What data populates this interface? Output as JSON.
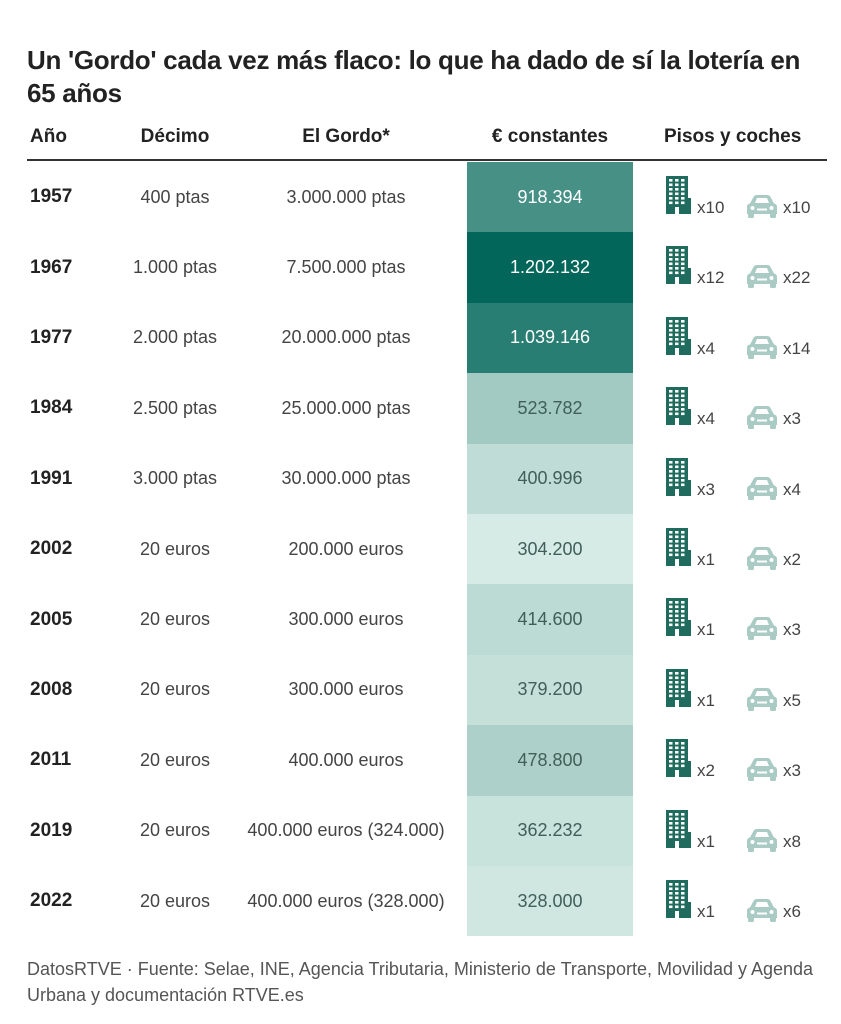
{
  "title": "Un 'Gordo' cada vez más flaco: lo que ha dado de sí la lotería en 65 años",
  "footer": "DatosRTVE · Fuente: Selae, INE, Agencia Tributaria, Ministerio de Transporte, Movilidad y Agenda Urbana y documentación RTVE.es",
  "colors": {
    "building": "#1f6b5e",
    "car": "#a9cbc3",
    "scale_low": "#d6ebe5",
    "scale_high": "#03665a"
  },
  "chart_data": {
    "type": "table",
    "columns": [
      "Año",
      "Décimo",
      "El Gordo*",
      "€ constantes",
      "Pisos y coches"
    ],
    "rows": [
      {
        "year": "1957",
        "decimo": "400 ptas",
        "gordo": "3.000.000 ptas",
        "constantes": "918.394",
        "value": 918394,
        "pisos": "x10",
        "coches": "x10"
      },
      {
        "year": "1967",
        "decimo": "1.000 ptas",
        "gordo": "7.500.000 ptas",
        "constantes": "1.202.132",
        "value": 1202132,
        "pisos": "x12",
        "coches": "x22"
      },
      {
        "year": "1977",
        "decimo": "2.000 ptas",
        "gordo": "20.000.000 ptas",
        "constantes": "1.039.146",
        "value": 1039146,
        "pisos": "x4",
        "coches": "x14"
      },
      {
        "year": "1984",
        "decimo": "2.500 ptas",
        "gordo": "25.000.000 ptas",
        "constantes": "523.782",
        "value": 523782,
        "pisos": "x4",
        "coches": "x3"
      },
      {
        "year": "1991",
        "decimo": "3.000 ptas",
        "gordo": "30.000.000 ptas",
        "constantes": "400.996",
        "value": 400996,
        "pisos": "x3",
        "coches": "x4"
      },
      {
        "year": "2002",
        "decimo": "20 euros",
        "gordo": "200.000 euros",
        "constantes": "304.200",
        "value": 304200,
        "pisos": "x1",
        "coches": "x2"
      },
      {
        "year": "2005",
        "decimo": "20 euros",
        "gordo": "300.000 euros",
        "constantes": "414.600",
        "value": 414600,
        "pisos": "x1",
        "coches": "x3"
      },
      {
        "year": "2008",
        "decimo": "20 euros",
        "gordo": "300.000 euros",
        "constantes": "379.200",
        "value": 379200,
        "pisos": "x1",
        "coches": "x5"
      },
      {
        "year": "2011",
        "decimo": "20 euros",
        "gordo": "400.000 euros",
        "constantes": "478.800",
        "value": 478800,
        "pisos": "x2",
        "coches": "x3"
      },
      {
        "year": "2019",
        "decimo": "20 euros",
        "gordo": "400.000 euros (324.000)",
        "constantes": "362.232",
        "value": 362232,
        "pisos": "x1",
        "coches": "x8"
      },
      {
        "year": "2022",
        "decimo": "20 euros",
        "gordo": "400.000 euros (328.000)",
        "constantes": "328.000",
        "value": 328000,
        "pisos": "x1",
        "coches": "x6"
      }
    ]
  }
}
